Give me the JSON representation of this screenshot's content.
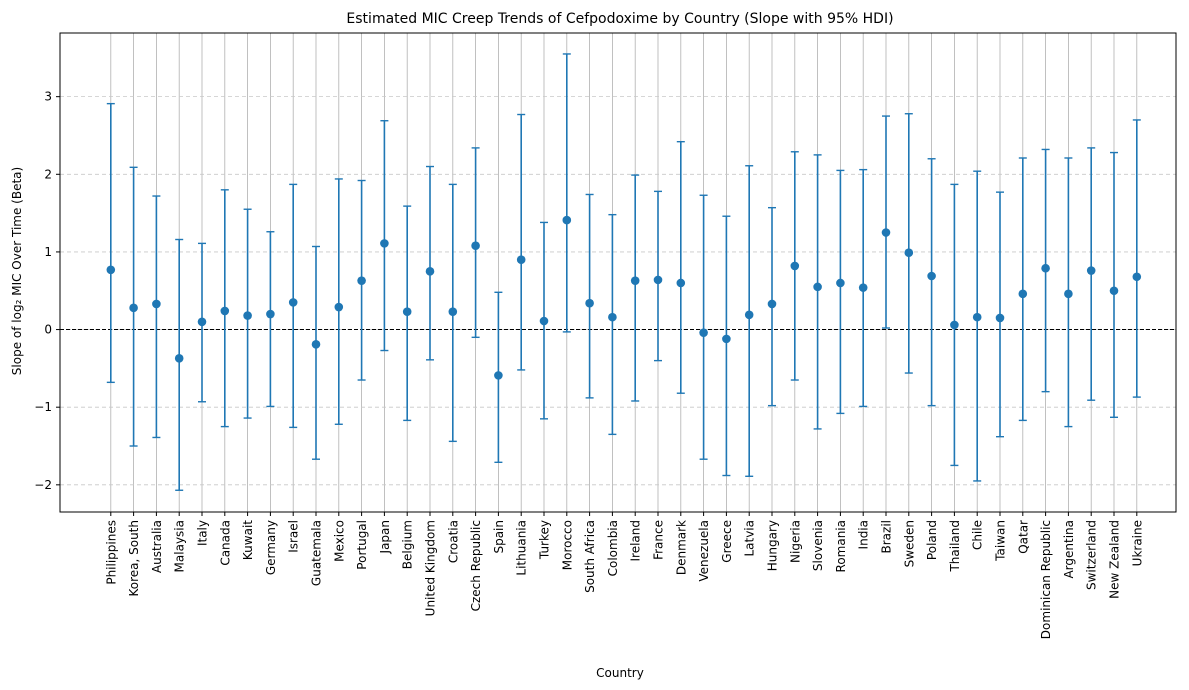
{
  "chart_data": {
    "type": "errorbar",
    "title": "Estimated MIC Creep Trends of Cefpodoxime by Country (Slope with 95% HDI)",
    "xlabel": "Country",
    "ylabel": "Slope of log₂ MIC Over Time (Beta)",
    "ylim": [
      -2.35,
      3.82
    ],
    "yticks": [
      -2,
      -1,
      0,
      1,
      2,
      3
    ],
    "ytick_labels": [
      "−2",
      "−1",
      "0",
      "1",
      "2",
      "3"
    ],
    "grid": {
      "x": true,
      "y": true,
      "y_style": "dashed"
    },
    "reference_line": 0,
    "color": "#1f77b4",
    "categories": [
      "Philippines",
      "Korea, South",
      "Australia",
      "Malaysia",
      "Italy",
      "Canada",
      "Kuwait",
      "Germany",
      "Israel",
      "Guatemala",
      "Mexico",
      "Portugal",
      "Japan",
      "Belgium",
      "United Kingdom",
      "Croatia",
      "Czech Republic",
      "Spain",
      "Lithuania",
      "Turkey",
      "Morocco",
      "South Africa",
      "Colombia",
      "Ireland",
      "France",
      "Denmark",
      "Venezuela",
      "Greece",
      "Latvia",
      "Hungary",
      "Nigeria",
      "Slovenia",
      "Romania",
      "India",
      "Brazil",
      "Sweden",
      "Poland",
      "Thailand",
      "Chile",
      "Taiwan",
      "Qatar",
      "Dominican Republic",
      "Argentina",
      "Switzerland",
      "New Zealand",
      "Ukraine"
    ],
    "values": [
      0.77,
      0.28,
      0.33,
      -0.37,
      0.1,
      0.24,
      0.18,
      0.2,
      0.35,
      -0.19,
      0.29,
      0.63,
      1.11,
      0.23,
      0.75,
      0.23,
      1.08,
      -0.59,
      0.9,
      0.11,
      1.41,
      0.34,
      0.16,
      0.63,
      0.64,
      0.6,
      -0.04,
      -0.12,
      0.19,
      0.33,
      0.82,
      0.55,
      0.6,
      0.54,
      1.25,
      0.99,
      0.69,
      0.06,
      0.16,
      0.15,
      0.46,
      0.79,
      0.46,
      0.76,
      0.5,
      0.68
    ],
    "lower": [
      -0.68,
      -1.5,
      -1.39,
      -2.07,
      -0.93,
      -1.25,
      -1.14,
      -0.99,
      -1.26,
      -1.67,
      -1.22,
      -0.65,
      -0.27,
      -1.17,
      -0.39,
      -1.44,
      -0.1,
      -1.71,
      -0.52,
      -1.15,
      -0.03,
      -0.88,
      -1.35,
      -0.92,
      -0.4,
      -0.82,
      -1.67,
      -1.88,
      -1.89,
      -0.98,
      -0.65,
      -1.28,
      -1.08,
      -0.99,
      0.02,
      -0.56,
      -0.98,
      -1.75,
      -1.95,
      -1.38,
      -1.17,
      -0.8,
      -1.25,
      -0.91,
      -1.13,
      -0.87
    ],
    "upper": [
      2.91,
      2.09,
      1.72,
      1.16,
      1.11,
      1.8,
      1.55,
      1.26,
      1.87,
      1.07,
      1.94,
      1.92,
      2.69,
      1.59,
      2.1,
      1.87,
      2.34,
      0.48,
      2.77,
      1.38,
      3.55,
      1.74,
      1.48,
      1.99,
      1.78,
      2.42,
      1.73,
      1.46,
      2.11,
      1.57,
      2.29,
      2.25,
      2.05,
      2.06,
      2.75,
      2.78,
      2.2,
      1.87,
      2.04,
      1.77,
      2.21,
      2.32,
      2.21,
      2.34,
      2.28,
      2.7
    ]
  }
}
